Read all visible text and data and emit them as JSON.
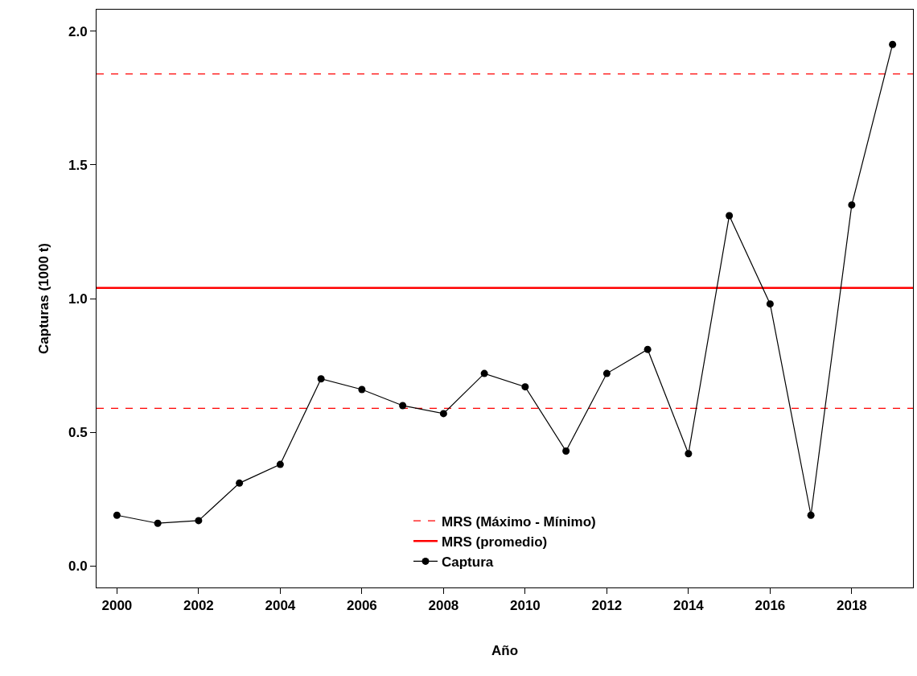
{
  "chart_data": {
    "type": "line",
    "xlabel": "Año",
    "ylabel": "Capturas (1000 t)",
    "x": [
      2000,
      2001,
      2002,
      2003,
      2004,
      2005,
      2006,
      2007,
      2008,
      2009,
      2010,
      2011,
      2012,
      2013,
      2014,
      2015,
      2016,
      2017,
      2018,
      2019
    ],
    "series": [
      {
        "name": "Captura",
        "color": "#000000",
        "values": [
          0.19,
          0.16,
          0.17,
          0.31,
          0.38,
          0.7,
          0.66,
          0.6,
          0.57,
          0.72,
          0.67,
          0.43,
          0.72,
          0.81,
          0.42,
          1.31,
          0.98,
          0.19,
          1.35,
          1.95
        ]
      }
    ],
    "ref_lines": [
      {
        "axis": "y",
        "value": 1.84,
        "label": "MRS (Máximo - Mínimo)",
        "color": "#ff0000",
        "line_style": "dashed"
      },
      {
        "axis": "y",
        "value": 0.59,
        "color": "#ff0000",
        "line_style": "dashed"
      },
      {
        "axis": "y",
        "value": 1.04,
        "label": "MRS (promedio)",
        "color": "#ff0000",
        "line_style": "solid"
      }
    ],
    "xlim": [
      1999.5,
      2019.5
    ],
    "xticks": [
      2000,
      2002,
      2004,
      2006,
      2008,
      2010,
      2012,
      2014,
      2016,
      2018
    ],
    "ylim": [
      -0.08,
      2.08
    ],
    "yticks": [
      {
        "value": 0,
        "label": "0.0"
      },
      {
        "value": 0.5,
        "label": "0.5"
      },
      {
        "value": 1,
        "label": "1.0"
      },
      {
        "value": 1.5,
        "label": "1.5"
      },
      {
        "value": 2,
        "label": "2.0"
      }
    ],
    "legend": "bottom",
    "marker": "circle",
    "line_style": "solid"
  }
}
